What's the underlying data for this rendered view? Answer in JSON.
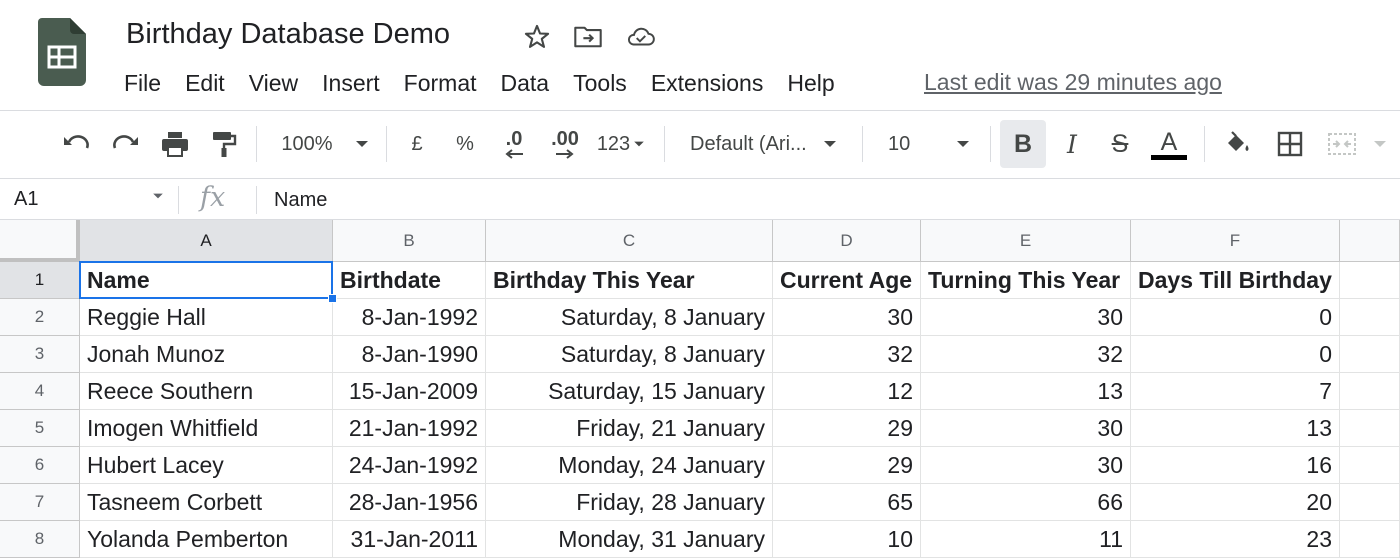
{
  "doc": {
    "title": "Birthday Database Demo",
    "last_edit": "Last edit was 29 minutes ago"
  },
  "icons": {
    "app": "sheets-logo-icon",
    "star": "star-icon",
    "move": "move-to-folder-icon",
    "cloud": "cloud-saved-icon"
  },
  "menu": [
    "File",
    "Edit",
    "View",
    "Insert",
    "Format",
    "Data",
    "Tools",
    "Extensions",
    "Help"
  ],
  "toolbar": {
    "zoom": "100%",
    "currency": "£",
    "percent": "%",
    "decrease_decimal": ".0",
    "increase_decimal": ".00",
    "number_format": "123",
    "font": "Default (Ari...",
    "font_size": "10",
    "bold": "B",
    "italic": "I",
    "strike": "S",
    "text_color": "A"
  },
  "formula_bar": {
    "cell_ref": "A1",
    "fx": "fx",
    "content": "Name"
  },
  "sheet": {
    "columns": [
      "A",
      "B",
      "C",
      "D",
      "E",
      "F"
    ],
    "row_numbers": [
      "1",
      "2",
      "3",
      "4",
      "5",
      "6",
      "7",
      "8"
    ],
    "rows": [
      [
        "Name",
        "Birthdate",
        "Birthday This Year",
        "Current Age",
        "Turning This Year",
        "Days Till Birthday"
      ],
      [
        "Reggie Hall",
        "8-Jan-1992",
        "Saturday, 8 January",
        "30",
        "30",
        "0"
      ],
      [
        "Jonah Munoz",
        "8-Jan-1990",
        "Saturday, 8 January",
        "32",
        "32",
        "0"
      ],
      [
        "Reece Southern",
        "15-Jan-2009",
        "Saturday, 15 January",
        "12",
        "13",
        "7"
      ],
      [
        "Imogen Whitfield",
        "21-Jan-1992",
        "Friday, 21 January",
        "29",
        "30",
        "13"
      ],
      [
        "Hubert Lacey",
        "24-Jan-1992",
        "Monday, 24 January",
        "29",
        "30",
        "16"
      ],
      [
        "Tasneem Corbett",
        "28-Jan-1956",
        "Friday, 28 January",
        "65",
        "66",
        "20"
      ],
      [
        "Yolanda Pemberton",
        "31-Jan-2011",
        "Monday, 31 January",
        "10",
        "11",
        "23"
      ]
    ]
  },
  "colors": {
    "selection": "#1a73e8",
    "logo_green": "#188038"
  }
}
